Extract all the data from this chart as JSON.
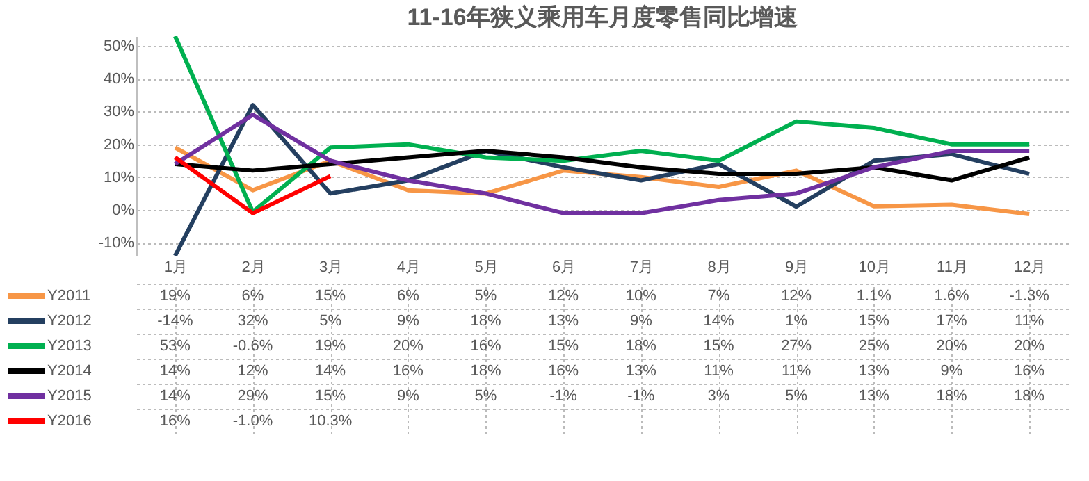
{
  "chart_data": {
    "type": "line",
    "title": "11-16年狭义乘用车月度零售同比增速",
    "categories": [
      "1月",
      "2月",
      "3月",
      "4月",
      "5月",
      "6月",
      "7月",
      "8月",
      "9月",
      "10月",
      "11月",
      "12月"
    ],
    "series": [
      {
        "name": "Y2011",
        "color": "#f79646",
        "values": [
          19,
          6,
          15,
          6,
          5,
          12,
          10,
          7,
          12,
          1.1,
          1.6,
          -1.3
        ],
        "value_labels": [
          "19%",
          "6%",
          "15%",
          "6%",
          "5%",
          "12%",
          "10%",
          "7%",
          "12%",
          "1.1%",
          "1.6%",
          "-1.3%"
        ]
      },
      {
        "name": "Y2012",
        "color": "#243f60",
        "values": [
          -14,
          32,
          5,
          9,
          18,
          13,
          9,
          14,
          1,
          15,
          17,
          11
        ],
        "value_labels": [
          "-14%",
          "32%",
          "5%",
          "9%",
          "18%",
          "13%",
          "9%",
          "14%",
          "1%",
          "15%",
          "17%",
          "11%"
        ]
      },
      {
        "name": "Y2013",
        "color": "#00b050",
        "values": [
          53,
          -0.6,
          19,
          20,
          16,
          15,
          18,
          15,
          27,
          25,
          20,
          20
        ],
        "value_labels": [
          "53%",
          "-0.6%",
          "19%",
          "20%",
          "16%",
          "15%",
          "18%",
          "15%",
          "27%",
          "25%",
          "20%",
          "20%"
        ]
      },
      {
        "name": "Y2014",
        "color": "#000000",
        "values": [
          14,
          12,
          14,
          16,
          18,
          16,
          13,
          11,
          11,
          13,
          9,
          16
        ],
        "value_labels": [
          "14%",
          "12%",
          "14%",
          "16%",
          "18%",
          "16%",
          "13%",
          "11%",
          "11%",
          "13%",
          "9%",
          "16%"
        ]
      },
      {
        "name": "Y2015",
        "color": "#7030a0",
        "values": [
          14,
          29,
          15,
          9,
          5,
          -1,
          -1,
          3,
          5,
          13,
          18,
          18
        ],
        "value_labels": [
          "14%",
          "29%",
          "15%",
          "9%",
          "5%",
          "-1%",
          "-1%",
          "3%",
          "5%",
          "13%",
          "18%",
          "18%"
        ]
      },
      {
        "name": "Y2016",
        "color": "#ff0000",
        "values": [
          16,
          -1.0,
          10.3,
          null,
          null,
          null,
          null,
          null,
          null,
          null,
          null,
          null
        ],
        "value_labels": [
          "16%",
          "-1.0%",
          "10.3%",
          null,
          null,
          null,
          null,
          null,
          null,
          null,
          null,
          null
        ]
      }
    ],
    "ylim": [
      -14,
      53
    ],
    "yticks": [
      {
        "value": -10,
        "label": "-10%"
      },
      {
        "value": 0,
        "label": "0%"
      },
      {
        "value": 10,
        "label": "10%"
      },
      {
        "value": 20,
        "label": "20%"
      },
      {
        "value": 30,
        "label": "30%"
      },
      {
        "value": 40,
        "label": "40%"
      },
      {
        "value": 50,
        "label": "50%"
      }
    ],
    "grid": "y",
    "legend": "bottom",
    "marker": "none",
    "line_style": "solid"
  }
}
